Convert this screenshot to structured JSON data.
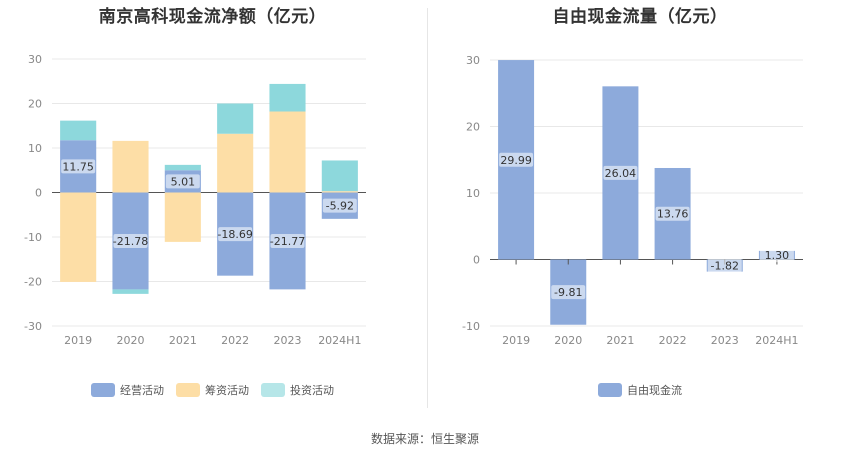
{
  "chart_data": [
    {
      "type": "bar",
      "stacked": true,
      "title": "南京高科现金流净额（亿元）",
      "categories": [
        "2019",
        "2020",
        "2021",
        "2022",
        "2023",
        "2024H1"
      ],
      "ylim": [
        -30,
        30
      ],
      "yticks": [
        30,
        20,
        10,
        0,
        -10,
        -20,
        -30
      ],
      "series": [
        {
          "name": "经营活动",
          "color": "#8daadb",
          "values": [
            11.75,
            -21.78,
            5.01,
            -18.69,
            -21.77,
            -5.92
          ],
          "labels": [
            "11.75",
            "-21.78",
            "5.01",
            "-18.69",
            "-21.77",
            "-5.92"
          ]
        },
        {
          "name": "筹资活动",
          "color": "#fddea6",
          "values": [
            -20.1,
            11.6,
            -11.1,
            13.2,
            18.2,
            0.3
          ]
        },
        {
          "name": "投资活动",
          "color": "#8dd8dc",
          "values": [
            4.4,
            -1.0,
            1.2,
            6.8,
            6.2,
            6.9
          ]
        }
      ],
      "legend": [
        "经营活动",
        "筹资活动",
        "投资活动"
      ],
      "legend_swatches": [
        "#8daadb",
        "#fddea6",
        "#b6e6e8"
      ],
      "grid": true,
      "legend_position": "bottom"
    },
    {
      "type": "bar",
      "title": "自由现金流量（亿元）",
      "categories": [
        "2019",
        "2020",
        "2021",
        "2022",
        "2023",
        "2024H1"
      ],
      "ylim": [
        -10,
        30
      ],
      "yticks": [
        30,
        20,
        10,
        0,
        -10
      ],
      "series": [
        {
          "name": "自由现金流",
          "color": "#8daadb",
          "values": [
            29.99,
            -9.81,
            26.04,
            13.76,
            -1.82,
            1.3
          ],
          "labels": [
            "29.99",
            "-9.81",
            "26.04",
            "13.76",
            "-1.82",
            "1.30"
          ]
        }
      ],
      "legend": [
        "自由现金流"
      ],
      "legend_swatches": [
        "#8daadb"
      ],
      "grid": true,
      "legend_position": "bottom"
    }
  ],
  "footer": "数据来源：恒生聚源"
}
